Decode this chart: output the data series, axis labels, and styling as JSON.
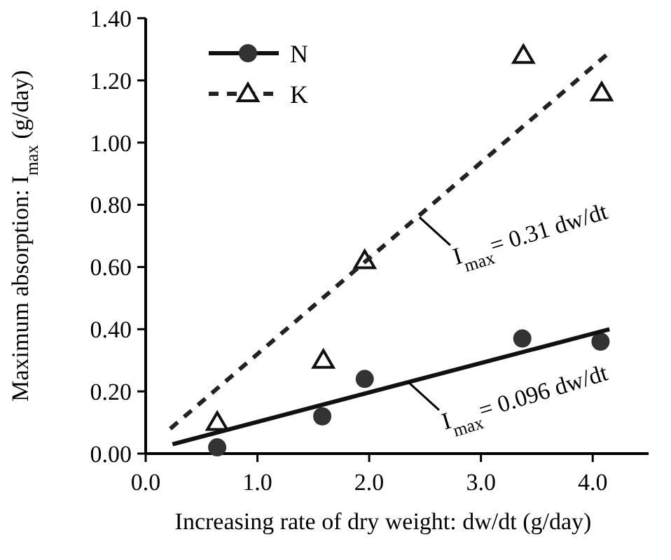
{
  "chart_data": {
    "type": "scatter",
    "xlabel": "Increasing rate of dry weight: dw/dt (g/day)",
    "ylabel": "Maximum absorption: I$_{max}$ (g/day)",
    "xlim": [
      0,
      4.5
    ],
    "ylim": [
      0,
      1.4
    ],
    "xticks": [
      {
        "value": 0,
        "label": "0.0"
      },
      {
        "value": 1,
        "label": "1.0"
      },
      {
        "value": 2,
        "label": "2.0"
      },
      {
        "value": 3,
        "label": "3.0"
      },
      {
        "value": 4,
        "label": "4.0"
      }
    ],
    "yticks": [
      {
        "value": 0,
        "label": "0.00"
      },
      {
        "value": 0.2,
        "label": "0.20"
      },
      {
        "value": 0.4,
        "label": "0.40"
      },
      {
        "value": 0.6,
        "label": "0.60"
      },
      {
        "value": 0.8,
        "label": "0.80"
      },
      {
        "value": 1,
        "label": "1.00"
      },
      {
        "value": 1.2,
        "label": "1.20"
      },
      {
        "value": 1.4,
        "label": "1.40"
      }
    ],
    "legend": "top left",
    "grid": false,
    "series": [
      {
        "name": "N",
        "marker": "circle",
        "color": "#333333",
        "x": [
          0.64,
          1.58,
          1.96,
          3.37,
          4.07
        ],
        "values": [
          0.02,
          0.12,
          0.24,
          0.37,
          0.36
        ]
      },
      {
        "type": "line",
        "line_style": "solid",
        "color": "#111111",
        "x": [
          0.24,
          4.15
        ],
        "values": [
          0.03,
          0.4
        ]
      },
      {
        "name": "K",
        "marker": "triangle",
        "color": "#111111",
        "x": [
          0.64,
          1.59,
          1.96,
          3.38,
          4.08
        ],
        "values": [
          0.1,
          0.3,
          0.62,
          1.28,
          1.16
        ]
      },
      {
        "type": "line",
        "line_style": "dashed",
        "color": "#222222",
        "x": [
          0.22,
          4.15
        ],
        "values": [
          0.08,
          1.29
        ]
      }
    ],
    "annotations": [
      {
        "text": "I$_{max}$= 0.31 dw/dt",
        "x": 2.45,
        "y": 0.76
      },
      {
        "text": "I$_{max}$= 0.096 dw/dt",
        "x": 2.35,
        "y": 0.23
      }
    ]
  }
}
